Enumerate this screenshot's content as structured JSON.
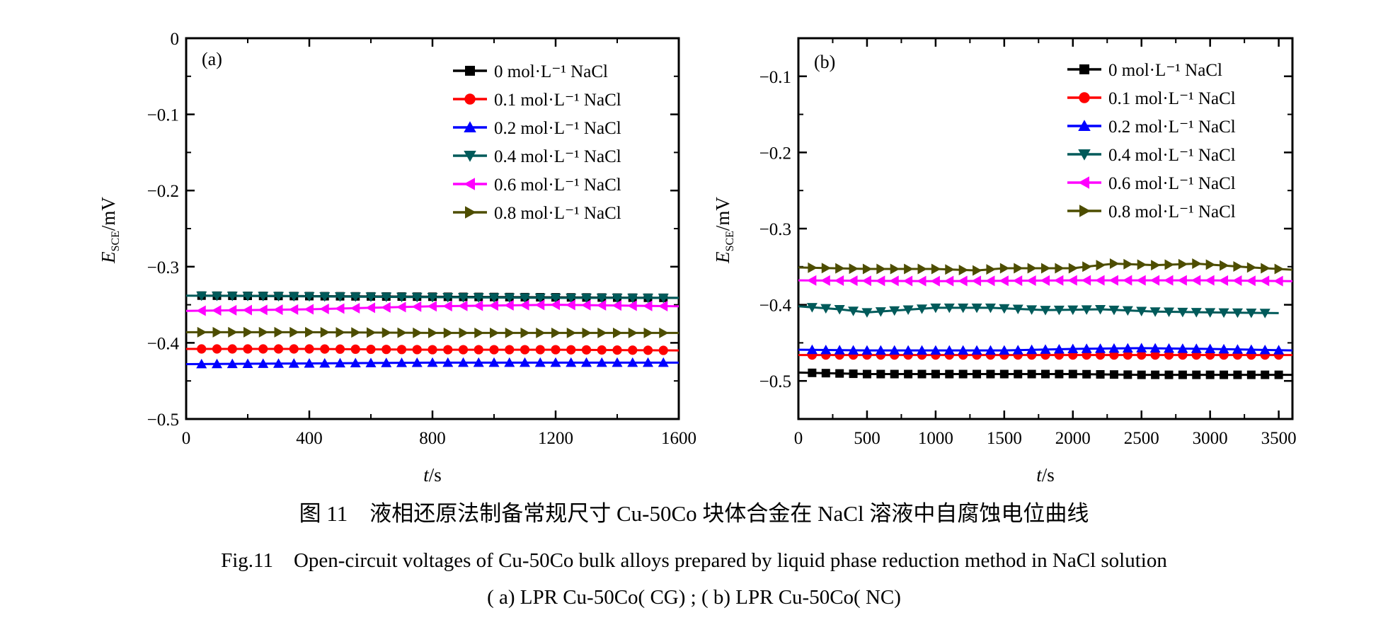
{
  "colors": {
    "0 mol": "#000000",
    "0.1 mol": "#ff0000",
    "0.2 mol": "#0000ff",
    "0.4 mol": "#005a5a",
    "0.6 mol": "#ff00ff",
    "0.8 mol": "#4d4d00"
  },
  "captions": {
    "zh": "图 11　液相还原法制备常规尺寸 Cu-50Co 块体合金在 NaCl 溶液中自腐蚀电位曲线",
    "en": "Fig.11　Open-circuit voltages of Cu-50Co bulk alloys prepared by liquid phase reduction method in NaCl solution",
    "sub": "( a) LPR Cu-50Co( CG) ; ( b) LPR Cu-50Co( NC)"
  },
  "chart_data": [
    {
      "type": "line",
      "panel_label": "(a)",
      "xlabel_italic": "t",
      "xlabel_rest": "/s",
      "ylabel_main": "E",
      "ylabel_sub": "SCE",
      "ylabel_rest": "/mV",
      "xlim": [
        0,
        1600
      ],
      "ylim": [
        -0.5,
        0
      ],
      "xticks": [
        0,
        400,
        800,
        1200,
        1600
      ],
      "xtick_labels": [
        "0",
        "400",
        "800",
        "1200",
        "1600"
      ],
      "yticks": [
        0,
        -0.1,
        -0.2,
        -0.3,
        -0.4,
        -0.5
      ],
      "ytick_labels": [
        "0",
        "−0.1",
        "−0.2",
        "−0.3",
        "−0.4",
        "−0.5"
      ],
      "legend_position": "top-right",
      "marker_step": 50,
      "series": [
        {
          "name": "0 mol·L⁻¹ NaCl",
          "marker": "square",
          "color_key": "0 mol",
          "x": [
            50,
            1600
          ],
          "y": [
            -0.338,
            -0.341
          ]
        },
        {
          "name": "0.1 mol·L⁻¹ NaCl",
          "marker": "circle",
          "color_key": "0.1 mol",
          "x": [
            0,
            400,
            800,
            1200,
            1600
          ],
          "y": [
            -0.408,
            -0.408,
            -0.409,
            -0.409,
            -0.41
          ]
        },
        {
          "name": "0.2 mol·L⁻¹ NaCl",
          "marker": "triangle-up",
          "color_key": "0.2 mol",
          "x": [
            0,
            400,
            800,
            1200,
            1600
          ],
          "y": [
            -0.428,
            -0.427,
            -0.426,
            -0.426,
            -0.426
          ]
        },
        {
          "name": "0.4 mol·L⁻¹ NaCl",
          "marker": "triangle-down",
          "color_key": "0.4 mol",
          "x": [
            0,
            400,
            800,
            1200,
            1600
          ],
          "y": [
            -0.338,
            -0.339,
            -0.34,
            -0.341,
            -0.341
          ]
        },
        {
          "name": "0.6 mol·L⁻¹ NaCl",
          "marker": "triangle-left",
          "color_key": "0.6 mol",
          "x": [
            0,
            400,
            800,
            1200,
            1600
          ],
          "y": [
            -0.358,
            -0.356,
            -0.352,
            -0.35,
            -0.352
          ]
        },
        {
          "name": "0.8 mol·L⁻¹ NaCl",
          "marker": "triangle-right",
          "color_key": "0.8 mol",
          "x": [
            0,
            400,
            800,
            1200,
            1600
          ],
          "y": [
            -0.386,
            -0.386,
            -0.387,
            -0.387,
            -0.387
          ]
        }
      ]
    },
    {
      "type": "line",
      "panel_label": "(b)",
      "xlabel_italic": "t",
      "xlabel_rest": "/s",
      "ylabel_main": "E",
      "ylabel_sub": "SCE",
      "ylabel_rest": "/mV",
      "xlim": [
        0,
        3600
      ],
      "ylim": [
        -0.55,
        -0.05
      ],
      "xticks": [
        0,
        500,
        1000,
        1500,
        2000,
        2500,
        3000,
        3500
      ],
      "xtick_labels": [
        "0",
        "500",
        "1000",
        "1500",
        "2000",
        "2500",
        "3000",
        "3500"
      ],
      "yticks": [
        -0.1,
        -0.2,
        -0.3,
        -0.4,
        -0.5
      ],
      "ytick_labels": [
        "−0.1",
        "−0.2",
        "−0.3",
        "−0.4",
        "−0.5"
      ],
      "legend_position": "top-right",
      "marker_step": 100,
      "series": [
        {
          "name": "0 mol·L⁻¹ NaCl",
          "marker": "square",
          "color_key": "0 mol",
          "x": [
            0,
            500,
            1000,
            1500,
            2000,
            2500,
            3000,
            3600
          ],
          "y": [
            -0.489,
            -0.491,
            -0.491,
            -0.491,
            -0.491,
            -0.492,
            -0.492,
            -0.492
          ]
        },
        {
          "name": "0.1 mol·L⁻¹ NaCl",
          "marker": "circle",
          "color_key": "0.1 mol",
          "x": [
            0,
            1000,
            2000,
            3000,
            3600
          ],
          "y": [
            -0.466,
            -0.466,
            -0.466,
            -0.466,
            -0.466
          ]
        },
        {
          "name": "0.2 mol·L⁻¹ NaCl",
          "marker": "triangle-up",
          "color_key": "0.2 mol",
          "x": [
            0,
            500,
            1000,
            1500,
            2000,
            2500,
            3000,
            3600
          ],
          "y": [
            -0.459,
            -0.46,
            -0.46,
            -0.46,
            -0.458,
            -0.457,
            -0.458,
            -0.46
          ]
        },
        {
          "name": "0.4 mol·L⁻¹ NaCl",
          "marker": "triangle-down",
          "color_key": "0.4 mol",
          "x": [
            0,
            300,
            500,
            1000,
            1400,
            1800,
            2200,
            2600,
            3000,
            3500
          ],
          "y": [
            -0.402,
            -0.406,
            -0.41,
            -0.404,
            -0.404,
            -0.407,
            -0.406,
            -0.409,
            -0.41,
            -0.411
          ]
        },
        {
          "name": "0.6 mol·L⁻¹ NaCl",
          "marker": "triangle-left",
          "color_key": "0.6 mol",
          "x": [
            0,
            1000,
            2000,
            3000,
            3600
          ],
          "y": [
            -0.368,
            -0.369,
            -0.368,
            -0.368,
            -0.369
          ]
        },
        {
          "name": "0.8 mol·L⁻¹ NaCl",
          "marker": "triangle-right",
          "color_key": "0.8 mol",
          "x": [
            0,
            500,
            1000,
            1300,
            1500,
            2000,
            2300,
            2600,
            2900,
            3300,
            3600
          ],
          "y": [
            -0.351,
            -0.353,
            -0.353,
            -0.355,
            -0.352,
            -0.352,
            -0.346,
            -0.348,
            -0.346,
            -0.351,
            -0.354
          ]
        }
      ]
    }
  ]
}
